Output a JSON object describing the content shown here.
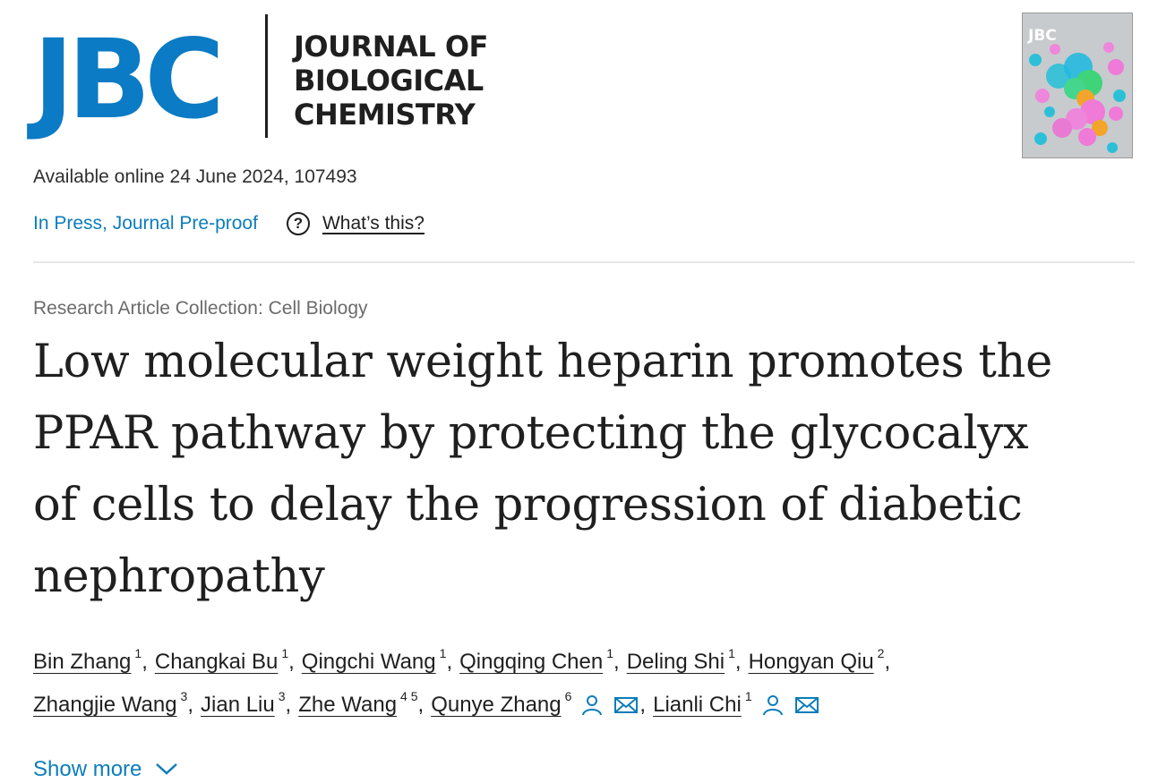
{
  "journal": {
    "logo_text": "JBC",
    "name_lines": [
      "JOURNAL OF",
      "BIOLOGICAL",
      "CHEMISTRY"
    ],
    "brand_color": "#0a7bc4"
  },
  "cover": {
    "logo_text": "JBC",
    "icon": "journal-cover-image"
  },
  "article": {
    "available_online": "Available online 24 June 2024, 107493",
    "status": "In Press, Journal Pre-proof",
    "help_label": "What’s this?",
    "collection": "Research Article Collection: Cell Biology",
    "title_lines": [
      "Low molecular weight heparin promotes the",
      "PPAR pathway by protecting the glycocalyx",
      "of cells to delay the progression of diabetic",
      "nephropathy"
    ]
  },
  "authors": {
    "line1": [
      {
        "name": "Bin Zhang",
        "aff": "1"
      },
      {
        "name": "Changkai Bu",
        "aff": "1"
      },
      {
        "name": "Qingchi Wang",
        "aff": "1"
      },
      {
        "name": "Qingqing Chen",
        "aff": "1"
      },
      {
        "name": "Deling Shi",
        "aff": "1"
      },
      {
        "name": "Hongyan Qiu",
        "aff": "2"
      }
    ],
    "line2": [
      {
        "name": "Zhangjie Wang",
        "aff": "3"
      },
      {
        "name": "Jian Liu",
        "aff": "3"
      },
      {
        "name": "Zhe Wang",
        "aff": "4 5"
      },
      {
        "name": "Qunye Zhang",
        "aff": "6"
      },
      {
        "name": "Lianli Chi",
        "aff": "1"
      }
    ],
    "separator": ","
  },
  "show_more": "Show more",
  "colors": {
    "link": "#0c7dba",
    "text": "#1f1f1f",
    "muted": "#6b6b6b"
  }
}
